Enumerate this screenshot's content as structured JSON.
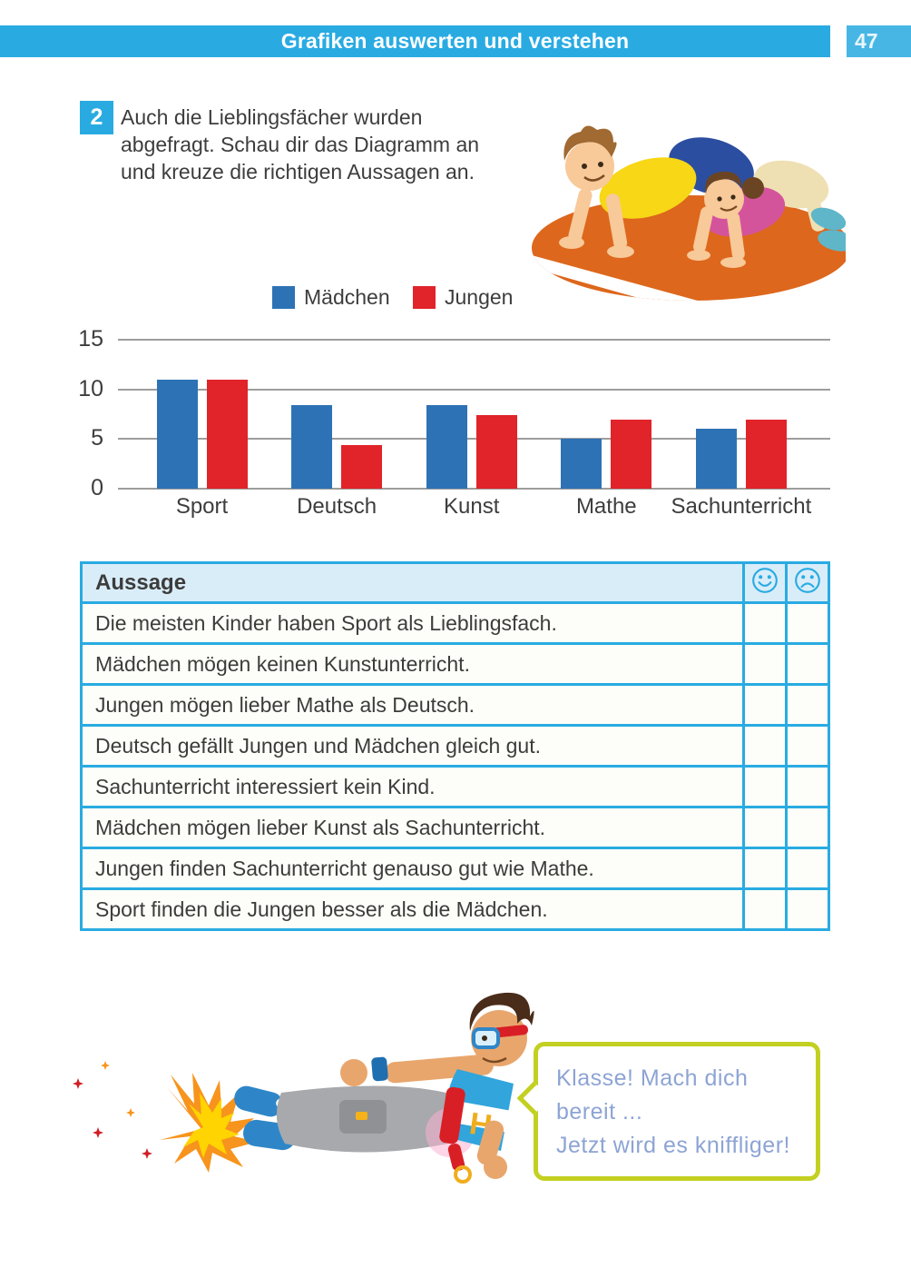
{
  "page": {
    "header_title": "Grafiken auswerten und verstehen",
    "number": "47"
  },
  "task": {
    "number": "2",
    "text": "Auch die Lieblingsfächer wurden abgefragt. Schau dir das Diagramm an und kreuze die richtigen Aussagen an."
  },
  "chart_data": {
    "type": "bar",
    "categories": [
      "Sport",
      "Deutsch",
      "Kunst",
      "Mathe",
      "Sachunterricht"
    ],
    "series": [
      {
        "name": "Mädchen",
        "color": "#2d72b5",
        "values": [
          11,
          8.4,
          8.4,
          5,
          6
        ]
      },
      {
        "name": "Jungen",
        "color": "#e1232a",
        "values": [
          11,
          4.4,
          7.4,
          7,
          7
        ]
      }
    ],
    "yticks": [
      0,
      5,
      10,
      15
    ],
    "ylim": [
      0,
      15
    ],
    "grid": true,
    "legend_position": "top",
    "title": "",
    "xlabel": "",
    "ylabel": ""
  },
  "table": {
    "header": {
      "label": "Aussage",
      "happy_icon": "happy-smiley-icon",
      "sad_icon": "sad-smiley-icon"
    },
    "rows": [
      "Die meisten Kinder haben Sport als Lieblingsfach.",
      "Mädchen mögen keinen Kunstunterricht.",
      "Jungen mögen lieber Mathe als Deutsch.",
      "Deutsch gefällt Jungen und Mädchen gleich gut.",
      "Sachunterricht interessiert kein Kind.",
      "Mädchen mögen lieber Kunst als Sachunterricht.",
      "Jungen finden Sachunterricht genauso gut wie Mathe.",
      "Sport finden die Jungen besser als die Mädchen."
    ]
  },
  "mascot": {
    "shirt_letter": "H",
    "speech_line1": "Klasse! Mach dich bereit ...",
    "speech_line2": "Jetzt wird es kniffliger!"
  },
  "colors": {
    "accent_blue": "#29abe2",
    "girls_blue": "#2d72b5",
    "boys_red": "#e1232a",
    "grid_gray": "#9d9d9c",
    "text_dark": "#3c3c3b",
    "table_header_bg": "#d9edf9",
    "bubble_border": "#c3d021",
    "bubble_text": "#8da4d4"
  }
}
